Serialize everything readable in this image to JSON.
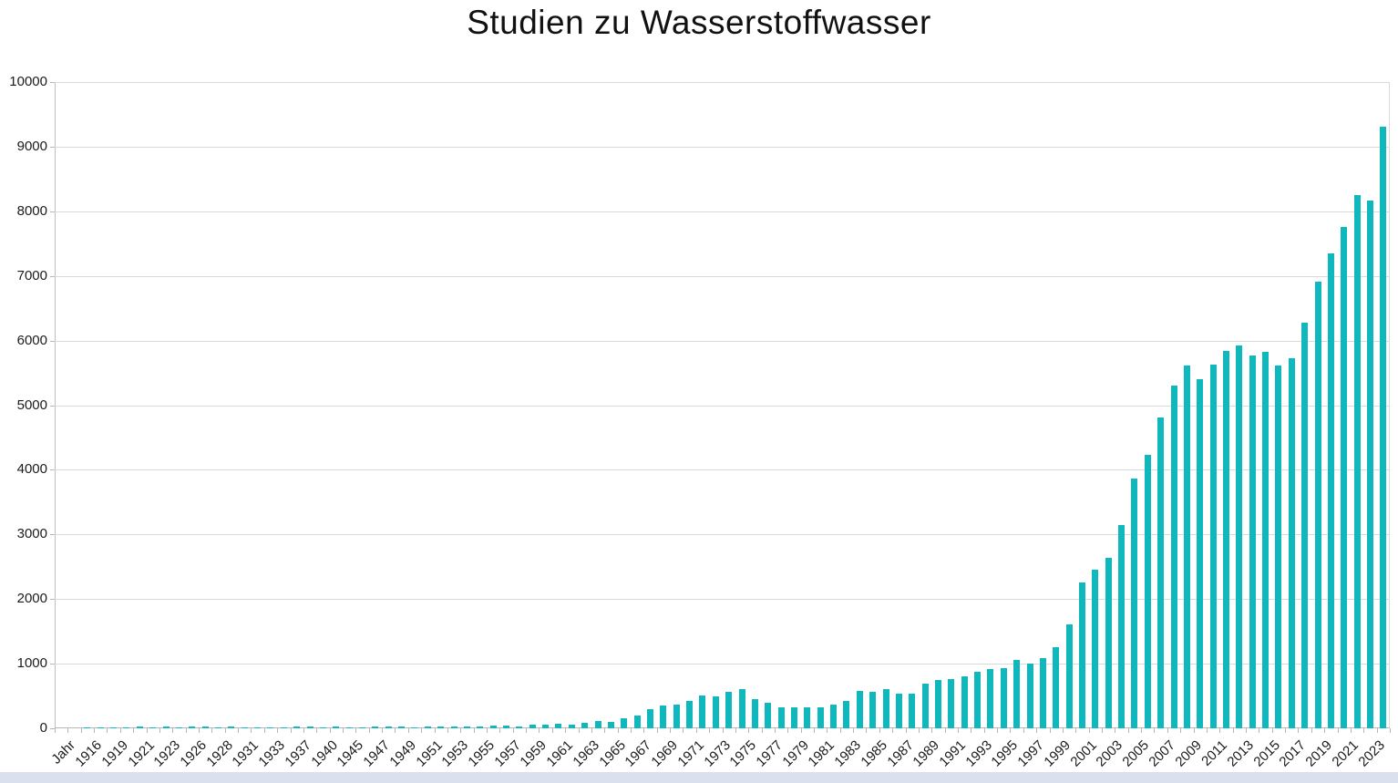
{
  "title": "Studien zu Wasserstoffwasser",
  "colors": {
    "bar": "#0fb8bd",
    "gridline": "#d9d9d9",
    "axis": "#b7b7b7",
    "text": "#1a1a1a",
    "bottom_strip": "#dbe0ee"
  },
  "chart_data": {
    "type": "bar",
    "title": "Studien zu Wasserstoffwasser",
    "xlabel": "",
    "ylabel": "",
    "ylim": [
      0,
      10000
    ],
    "y_step": 1000,
    "grid": true,
    "legend": "none",
    "y_ticks": [
      "0",
      "1000",
      "2000",
      "3000",
      "4000",
      "5000",
      "6000",
      "7000",
      "8000",
      "9000",
      "10000"
    ],
    "categories": [
      "Jahr",
      "",
      "1916",
      "",
      "1919",
      "",
      "1921",
      "",
      "1923",
      "",
      "1926",
      "",
      "1928",
      "",
      "1931",
      "",
      "1933",
      "",
      "1937",
      "",
      "1940",
      "",
      "1945",
      "",
      "1947",
      "",
      "1949",
      "",
      "1951",
      "",
      "1953",
      "",
      "1955",
      "",
      "1957",
      "",
      "1959",
      "",
      "1961",
      "",
      "1963",
      "",
      "1965",
      "",
      "1967",
      "",
      "1969",
      "",
      "1971",
      "",
      "1973",
      "",
      "1975",
      "",
      "1977",
      "",
      "1979",
      "",
      "1981",
      "",
      "1983",
      "",
      "1985",
      "",
      "1987",
      "",
      "1989",
      "",
      "1991",
      "",
      "1993",
      "",
      "1995",
      "",
      "1997",
      "",
      "1999",
      "",
      "2001",
      "",
      "2003",
      "",
      "2005",
      "",
      "2007",
      "",
      "2009",
      "",
      "2011",
      "",
      "2013",
      "",
      "2015",
      "",
      "2017",
      "",
      "2019",
      "",
      "2021",
      "",
      "2023",
      ""
    ],
    "values": [
      0,
      5,
      10,
      10,
      20,
      15,
      25,
      20,
      25,
      20,
      25,
      25,
      20,
      25,
      15,
      15,
      15,
      10,
      25,
      25,
      15,
      25,
      15,
      20,
      25,
      25,
      25,
      20,
      25,
      25,
      30,
      30,
      35,
      40,
      40,
      35,
      50,
      55,
      65,
      55,
      80,
      115,
      95,
      155,
      200,
      300,
      350,
      370,
      430,
      510,
      500,
      560,
      600,
      450,
      390,
      330,
      320,
      330,
      330,
      360,
      430,
      580,
      560,
      600,
      530,
      540,
      690,
      750,
      760,
      810,
      870,
      910,
      930,
      1060,
      1000,
      1090,
      1250,
      1610,
      2260,
      2450,
      2640,
      3140,
      3870,
      4230,
      4810,
      5300,
      5610,
      5400,
      5630,
      5840,
      5920,
      5770,
      5820,
      5620,
      5720,
      6280,
      6910,
      7350,
      7760,
      8250,
      8160,
      9310
    ]
  }
}
